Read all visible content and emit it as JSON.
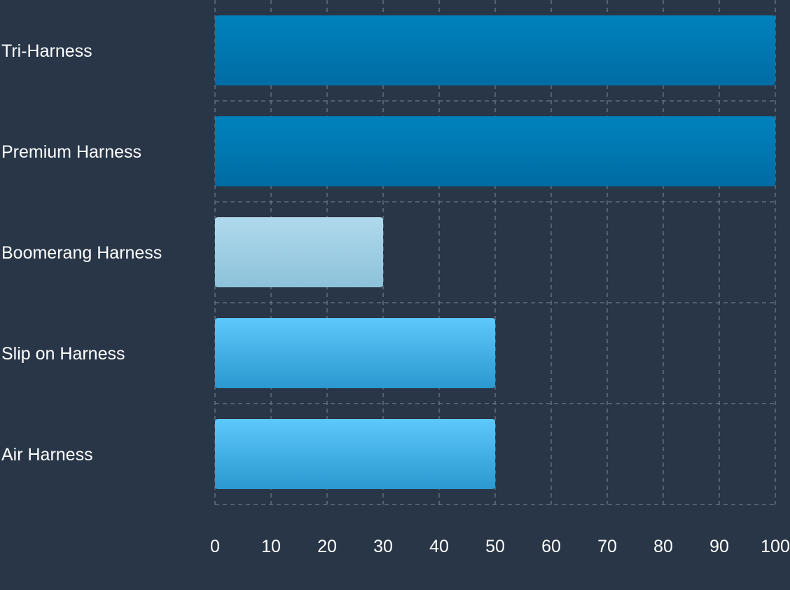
{
  "chart_data": {
    "type": "bar",
    "orientation": "horizontal",
    "categories": [
      "Tri-Harness",
      "Premium Harness",
      "Boomerang Harness",
      "Slip on Harness",
      "Air Harness"
    ],
    "values": [
      100,
      100,
      30,
      50,
      50
    ],
    "bar_colors": [
      {
        "top": "#0082bd",
        "bottom": "#006ca3"
      },
      {
        "top": "#0082bd",
        "bottom": "#006ca3"
      },
      {
        "top": "#b0d9ec",
        "bottom": "#8cc2da"
      },
      {
        "top": "#5cc8fb",
        "bottom": "#2b98cf"
      },
      {
        "top": "#5cc8fb",
        "bottom": "#2b98cf"
      }
    ],
    "xticks": [
      "0",
      "10",
      "20",
      "30",
      "40",
      "50",
      "60",
      "70",
      "80",
      "90",
      "100"
    ],
    "xlim": [
      0,
      100
    ],
    "grid": true,
    "title": "",
    "xlabel": "",
    "ylabel": ""
  },
  "colors": {
    "background": "#283647",
    "grid": "#6b7685",
    "text": "#ffffff"
  }
}
